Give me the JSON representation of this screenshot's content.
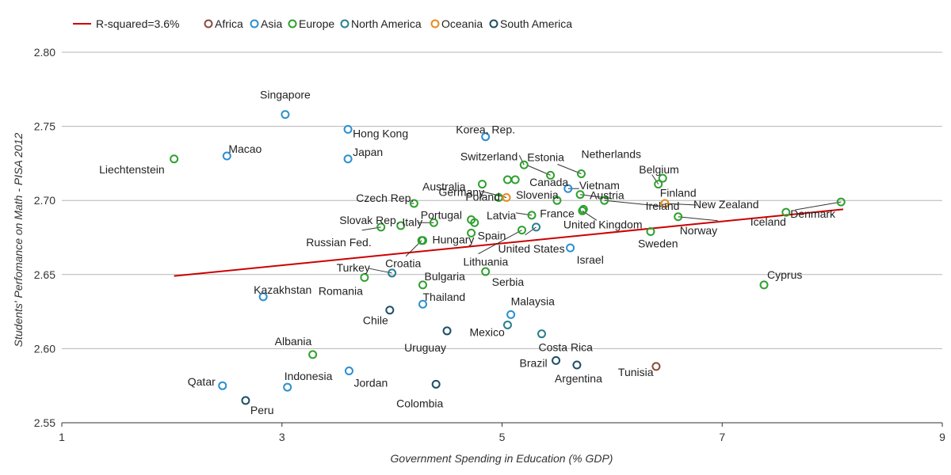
{
  "chart_data": {
    "type": "scatter",
    "xlabel": "Government Spending in Education (% GDP)",
    "ylabel": "Students' Perfomance on Math - PISA 2012",
    "xlim": [
      1,
      9
    ],
    "ylim": [
      2.55,
      2.8
    ],
    "xticks": [
      1,
      3,
      5,
      7,
      9
    ],
    "yticks": [
      "2.55",
      "2.60",
      "2.65",
      "2.70",
      "2.75",
      "2.80"
    ],
    "grid": "horizontal",
    "legend_position": "top",
    "trendline": {
      "label": "R-squared=3.6%",
      "color": "#cc0000",
      "x": [
        2.02,
        8.1
      ],
      "y": [
        2.649,
        2.694
      ]
    },
    "series": [
      {
        "name": "Africa",
        "color": "#8b4a3a",
        "points": [
          {
            "label": "Tunisia",
            "x": 6.4,
            "y": 2.588
          }
        ]
      },
      {
        "name": "Asia",
        "color": "#2a8fd0",
        "points": [
          {
            "label": "Singapore",
            "x": 3.03,
            "y": 2.758
          },
          {
            "label": "Hong Kong",
            "x": 3.6,
            "y": 2.748
          },
          {
            "label": "Korea, Rep.",
            "x": 4.85,
            "y": 2.743
          },
          {
            "label": "Macao",
            "x": 2.5,
            "y": 2.73
          },
          {
            "label": "Japan",
            "x": 3.6,
            "y": 2.728
          },
          {
            "label": "Vietnam",
            "x": 5.6,
            "y": 2.708
          },
          {
            "label": "Israel",
            "x": 5.62,
            "y": 2.668
          },
          {
            "label": "Kazakhstan",
            "x": 2.83,
            "y": 2.635
          },
          {
            "label": "Malaysia",
            "x": 5.08,
            "y": 2.623
          },
          {
            "label": "Thailand",
            "x": 4.28,
            "y": 2.63
          },
          {
            "label": "Qatar",
            "x": 2.46,
            "y": 2.575
          },
          {
            "label": "Indonesia",
            "x": 3.05,
            "y": 2.574
          },
          {
            "label": "Jordan",
            "x": 3.61,
            "y": 2.585
          }
        ]
      },
      {
        "name": "Europe",
        "color": "#2ea02e",
        "points": [
          {
            "label": "Liechtenstein",
            "x": 2.02,
            "y": 2.728
          },
          {
            "label": "Switzerland",
            "x": 5.2,
            "y": 2.724
          },
          {
            "label": "Estonia",
            "x": 5.44,
            "y": 2.717
          },
          {
            "label": "Netherlands",
            "x": 5.72,
            "y": 2.718
          },
          {
            "label": "Belgium",
            "x": 6.46,
            "y": 2.715
          },
          {
            "label": "Finland",
            "x": 6.42,
            "y": 2.711
          },
          {
            "label": "Germany",
            "x": 4.82,
            "y": 2.711
          },
          {
            "label": "Canada",
            "x": 5.12,
            "y": 2.714
          },
          {
            "label": "Canada",
            "x": 5.05,
            "y": 2.714
          },
          {
            "label": "Poland",
            "x": 4.97,
            "y": 2.702
          },
          {
            "label": "Slovenia",
            "x": 5.5,
            "y": 2.7
          },
          {
            "label": "Austria",
            "x": 5.71,
            "y": 2.704
          },
          {
            "label": "Ireland",
            "x": 5.93,
            "y": 2.7
          },
          {
            "label": "Denmark",
            "x": 8.08,
            "y": 2.699
          },
          {
            "label": "Iceland",
            "x": 7.58,
            "y": 2.692
          },
          {
            "label": "Norway",
            "x": 6.6,
            "y": 2.689
          },
          {
            "label": "Sweden",
            "x": 6.35,
            "y": 2.679
          },
          {
            "label": "France",
            "x": 5.74,
            "y": 2.694
          },
          {
            "label": "United Kingdom",
            "x": 5.73,
            "y": 2.693
          },
          {
            "label": "Czech Rep.",
            "x": 4.2,
            "y": 2.698
          },
          {
            "label": "Latvia",
            "x": 5.27,
            "y": 2.69
          },
          {
            "label": "Portugal",
            "x": 4.75,
            "y": 2.685
          },
          {
            "label": "Portugal",
            "x": 4.72,
            "y": 2.687
          },
          {
            "label": "Spain",
            "x": 4.72,
            "y": 2.678
          },
          {
            "label": "Italy",
            "x": 4.38,
            "y": 2.685
          },
          {
            "label": "Slovak Rep.",
            "x": 4.08,
            "y": 2.683
          },
          {
            "label": "Russian Fed.",
            "x": 3.9,
            "y": 2.682
          },
          {
            "label": "Hungary",
            "x": 4.28,
            "y": 2.673
          },
          {
            "label": "Lithuania",
            "x": 5.18,
            "y": 2.68
          },
          {
            "label": "Croatia",
            "x": 4.27,
            "y": 2.673
          },
          {
            "label": "Serbia",
            "x": 4.85,
            "y": 2.652
          },
          {
            "label": "Romania",
            "x": 3.75,
            "y": 2.648
          },
          {
            "label": "Bulgaria",
            "x": 4.28,
            "y": 2.643
          },
          {
            "label": "Cyprus",
            "x": 7.38,
            "y": 2.643
          },
          {
            "label": "Albania",
            "x": 3.28,
            "y": 2.596
          }
        ]
      },
      {
        "name": "North America",
        "color": "#2a7f8f",
        "points": [
          {
            "label": "United States",
            "x": 5.31,
            "y": 2.682
          },
          {
            "label": "Turkey",
            "x": 4.0,
            "y": 2.651
          },
          {
            "label": "Mexico",
            "x": 5.05,
            "y": 2.616
          },
          {
            "label": "Costa Rica",
            "x": 5.36,
            "y": 2.61
          }
        ]
      },
      {
        "name": "Oceania",
        "color": "#e68a1e",
        "points": [
          {
            "label": "Australia",
            "x": 5.04,
            "y": 2.702
          },
          {
            "label": "New Zealand",
            "x": 6.48,
            "y": 2.698
          }
        ]
      },
      {
        "name": "South America",
        "color": "#1f4e66",
        "points": [
          {
            "label": "Chile",
            "x": 3.98,
            "y": 2.626
          },
          {
            "label": "Uruguay",
            "x": 4.5,
            "y": 2.612
          },
          {
            "label": "Brazil",
            "x": 5.49,
            "y": 2.592
          },
          {
            "label": "Argentina",
            "x": 5.68,
            "y": 2.589
          },
          {
            "label": "Colombia",
            "x": 4.4,
            "y": 2.576
          },
          {
            "label": "Peru",
            "x": 2.67,
            "y": 2.565
          }
        ]
      }
    ]
  }
}
